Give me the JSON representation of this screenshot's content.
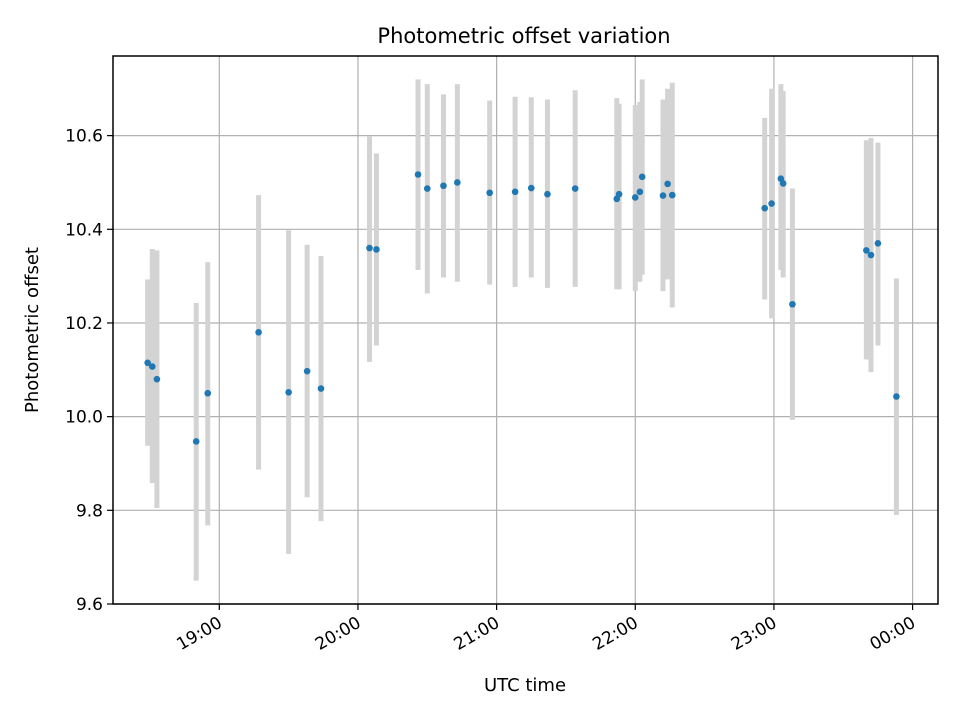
{
  "chart_data": {
    "type": "scatter",
    "title": "Photometric offset variation",
    "xlabel": "UTC time",
    "ylabel": "Photometric offset",
    "grid": true,
    "legend": "none",
    "x_tick_labels": [
      "19:00",
      "20:00",
      "21:00",
      "22:00",
      "23:00",
      "00:00"
    ],
    "y_tick_labels": [
      "9.6",
      "9.8",
      "10.0",
      "10.2",
      "10.4",
      "10.6"
    ],
    "y_ticks": [
      9.6,
      9.8,
      10.0,
      10.2,
      10.4,
      10.6
    ],
    "xlim_minutes_from_19h": [
      -46,
      311
    ],
    "ylim": [
      9.6,
      10.77
    ],
    "colors": {
      "marker": "#1f77b4",
      "errorbar": "#d3d3d3",
      "grid": "#b0b0b0"
    },
    "series": [
      {
        "points": [
          {
            "time": "18:29",
            "y": 10.115,
            "err_low": 9.938,
            "err_high": 10.293
          },
          {
            "time": "18:31",
            "y": 10.107,
            "err_low": 9.858,
            "err_high": 10.358
          },
          {
            "time": "18:33",
            "y": 10.08,
            "err_low": 9.805,
            "err_high": 10.355
          },
          {
            "time": "18:50",
            "y": 9.947,
            "err_low": 9.65,
            "err_high": 10.243
          },
          {
            "time": "18:55",
            "y": 10.05,
            "err_low": 9.768,
            "err_high": 10.33
          },
          {
            "time": "19:17",
            "y": 10.18,
            "err_low": 9.887,
            "err_high": 10.473
          },
          {
            "time": "19:30",
            "y": 10.052,
            "err_low": 9.707,
            "err_high": 10.398
          },
          {
            "time": "19:38",
            "y": 10.097,
            "err_low": 9.828,
            "err_high": 10.367
          },
          {
            "time": "19:44",
            "y": 10.06,
            "err_low": 9.777,
            "err_high": 10.343
          },
          {
            "time": "20:05",
            "y": 10.36,
            "err_low": 10.117,
            "err_high": 10.598
          },
          {
            "time": "20:08",
            "y": 10.357,
            "err_low": 10.152,
            "err_high": 10.562
          },
          {
            "time": "20:26",
            "y": 10.517,
            "err_low": 10.313,
            "err_high": 10.72
          },
          {
            "time": "20:30",
            "y": 10.487,
            "err_low": 10.263,
            "err_high": 10.71
          },
          {
            "time": "20:37",
            "y": 10.493,
            "err_low": 10.297,
            "err_high": 10.688
          },
          {
            "time": "20:43",
            "y": 10.5,
            "err_low": 10.288,
            "err_high": 10.71
          },
          {
            "time": "20:57",
            "y": 10.478,
            "err_low": 10.282,
            "err_high": 10.675
          },
          {
            "time": "21:08",
            "y": 10.48,
            "err_low": 10.277,
            "err_high": 10.683
          },
          {
            "time": "21:15",
            "y": 10.488,
            "err_low": 10.297,
            "err_high": 10.682
          },
          {
            "time": "21:22",
            "y": 10.475,
            "err_low": 10.275,
            "err_high": 10.677
          },
          {
            "time": "21:34",
            "y": 10.487,
            "err_low": 10.277,
            "err_high": 10.697
          },
          {
            "time": "21:52",
            "y": 10.465,
            "err_low": 10.272,
            "err_high": 10.68
          },
          {
            "time": "21:53",
            "y": 10.475,
            "err_low": 10.272,
            "err_high": 10.668
          },
          {
            "time": "22:00",
            "y": 10.468,
            "err_low": 10.268,
            "err_high": 10.665
          },
          {
            "time": "22:02",
            "y": 10.48,
            "err_low": 10.288,
            "err_high": 10.672
          },
          {
            "time": "22:03",
            "y": 10.512,
            "err_low": 10.303,
            "err_high": 10.72
          },
          {
            "time": "22:12",
            "y": 10.472,
            "err_low": 10.268,
            "err_high": 10.677
          },
          {
            "time": "22:14",
            "y": 10.497,
            "err_low": 10.293,
            "err_high": 10.7
          },
          {
            "time": "22:16",
            "y": 10.473,
            "err_low": 10.233,
            "err_high": 10.713
          },
          {
            "time": "22:56",
            "y": 10.445,
            "err_low": 10.25,
            "err_high": 10.638
          },
          {
            "time": "22:59",
            "y": 10.455,
            "err_low": 10.21,
            "err_high": 10.7
          },
          {
            "time": "23:03",
            "y": 10.508,
            "err_low": 10.313,
            "err_high": 10.71
          },
          {
            "time": "23:04",
            "y": 10.498,
            "err_low": 10.297,
            "err_high": 10.695
          },
          {
            "time": "23:08",
            "y": 10.24,
            "err_low": 9.993,
            "err_high": 10.487
          },
          {
            "time": "23:40",
            "y": 10.355,
            "err_low": 10.122,
            "err_high": 10.59
          },
          {
            "time": "23:42",
            "y": 10.345,
            "err_low": 10.095,
            "err_high": 10.595
          },
          {
            "time": "23:45",
            "y": 10.37,
            "err_low": 10.152,
            "err_high": 10.585
          },
          {
            "time": "23:53",
            "y": 10.043,
            "err_low": 9.79,
            "err_high": 10.295
          }
        ]
      }
    ]
  }
}
